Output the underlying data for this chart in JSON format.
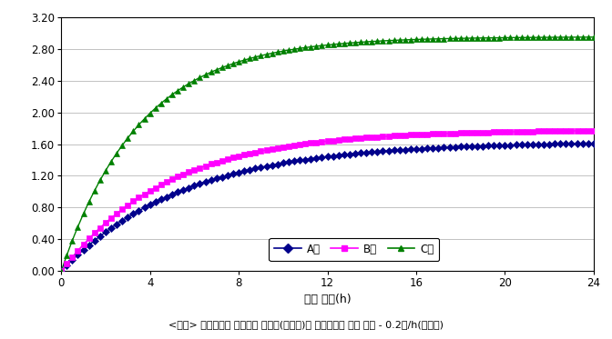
{
  "caption": "<그림> 생활용품의 오염물질 방출량(측정값)과 환기횟수에 따른 변화 - 0.2회/h(공부방)",
  "xlabel": "시간 경과(h)",
  "xlim": [
    0,
    24
  ],
  "ylim": [
    0.0,
    3.2
  ],
  "yticks": [
    0.0,
    0.4,
    0.8,
    1.2,
    1.6,
    2.0,
    2.4,
    2.8,
    3.2
  ],
  "xticks": [
    0,
    4,
    8,
    12,
    16,
    20,
    24
  ],
  "series": [
    {
      "label": "A형",
      "color": "#00008B",
      "marker": "D",
      "asymptote": 1.63,
      "rate": 0.18
    },
    {
      "label": "B형",
      "color": "#FF00FF",
      "marker": "s",
      "asymptote": 1.78,
      "rate": 0.21
    },
    {
      "label": "C형",
      "color": "#008000",
      "marker": "^",
      "asymptote": 2.95,
      "rate": 0.28
    }
  ],
  "background_color": "#FFFFFF",
  "plot_bg_color": "#FFFFFF",
  "grid_color": "#888888",
  "marker_size": 4,
  "linewidth": 1.0,
  "marker_interval": 0.25
}
